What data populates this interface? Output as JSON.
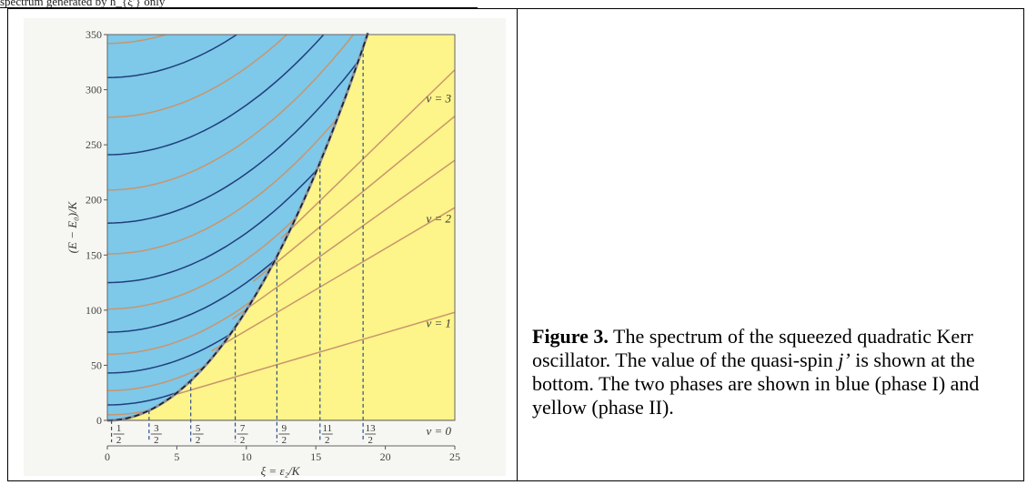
{
  "header": {
    "cut_text": "spectrum generated by h_{ξ′} only"
  },
  "figure": {
    "caption_label": "Figure 3.",
    "caption_pre": " The spectrum of the squeezed quadratic Kerr oscillator. The value of the quasi-spin ",
    "caption_j": "j’",
    "caption_post": " is shown at the bottom. The two phases are shown in blue (phase I) and yellow (phase II).",
    "phase_I_color": "#7ec8ea",
    "phase_II_color": "#fdf48a",
    "level_color_dark": "#1f3f7a",
    "level_color_light": "#c8966a"
  },
  "chart_data": {
    "type": "line",
    "xlabel": "ξ = ε₂/K",
    "ylabel": "(E − E₀)/K",
    "xlim": [
      0,
      25
    ],
    "ylim": [
      0,
      350
    ],
    "x_ticks": [
      "0",
      "5",
      "10",
      "15",
      "20",
      "25"
    ],
    "y_ticks": [
      "0",
      "50",
      "100",
      "150",
      "200",
      "250",
      "300",
      "350"
    ],
    "x_tick_values": [
      0,
      5,
      10,
      15,
      20,
      25
    ],
    "y_tick_values": [
      0,
      50,
      100,
      150,
      200,
      250,
      300,
      350
    ],
    "phase_boundary": {
      "x": [
        0,
        3,
        6,
        9,
        12,
        15,
        18.5
      ],
      "y": [
        0,
        9,
        36,
        81,
        144,
        225,
        342
      ]
    },
    "series": [
      {
        "label": "v = 0",
        "x": [
          0,
          25
        ],
        "y": [
          0,
          0
        ]
      },
      {
        "label": "v = 1",
        "x": [
          4.5,
          25
        ],
        "y": [
          22,
          98
        ]
      },
      {
        "label": "v = 2",
        "x": [
          7.5,
          25
        ],
        "y": [
          63,
          193
        ]
      },
      {
        "label": "v = 3",
        "x": [
          10.5,
          25
        ],
        "y": [
          126,
          276
        ]
      }
    ],
    "quasi_spin_values": [
      {
        "num": "1",
        "den": "2",
        "x": 0.3
      },
      {
        "num": "3",
        "den": "2",
        "x": 3.0
      },
      {
        "num": "5",
        "den": "2",
        "x": 6.0
      },
      {
        "num": "7",
        "den": "2",
        "x": 9.2
      },
      {
        "num": "9",
        "den": "2",
        "x": 12.2
      },
      {
        "num": "11",
        "den": "2",
        "x": 15.3
      },
      {
        "num": "13",
        "den": "2",
        "x": 18.4
      }
    ],
    "phase_I_levels_y0": [
      5,
      14,
      27,
      43,
      60,
      80,
      101,
      125,
      151,
      179,
      209,
      241,
      275,
      311,
      342
    ]
  }
}
